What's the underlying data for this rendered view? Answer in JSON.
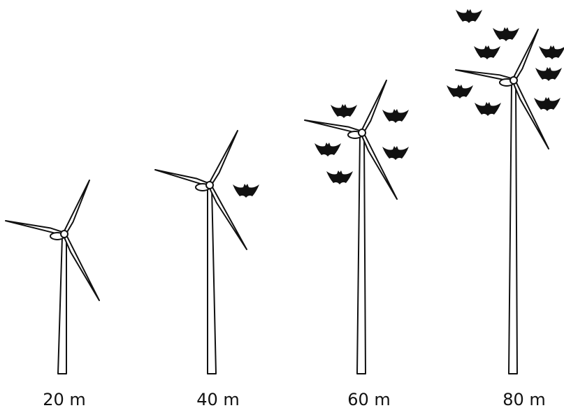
{
  "turbines": [
    {
      "label": "20 m"
    },
    {
      "label": "40 m"
    },
    {
      "label": "60 m"
    },
    {
      "label": "80 m"
    }
  ]
}
